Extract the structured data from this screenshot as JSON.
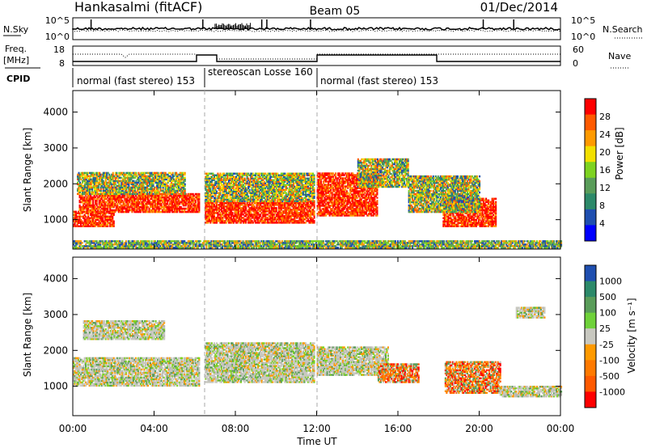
{
  "header": {
    "station": "Hankasalmi (fitACF)",
    "beam": "Beam 05",
    "date": "01/Dec/2014"
  },
  "noise_panel": {
    "left_label": "N.Sky",
    "right_label": "N.Search",
    "tick_top": "10^5",
    "tick_bottom": "10^0",
    "spikes_hours": [
      0.9,
      6.4,
      9.3,
      9.55,
      11.7,
      20.2,
      21.7
    ]
  },
  "freq_panel": {
    "label_line1": "Freq.",
    "label_line2": "[MHz]",
    "left_ticks": [
      "18",
      "8"
    ],
    "right_ticks": [
      "60",
      "0"
    ],
    "right_label": "Nave"
  },
  "cpid_panel": {
    "label": "CPID",
    "modes": [
      {
        "text": "normal (fast stereo) 153",
        "start": 0,
        "end": 6.4
      },
      {
        "text": "stereoscan Losse 160",
        "start": 6.4,
        "end": 12.0
      },
      {
        "text": "normal (fast stereo) 153",
        "start": 12.0,
        "end": 24.0
      }
    ]
  },
  "x_axis": {
    "label": "Time UT",
    "ticks": [
      "00:00",
      "04:00",
      "08:00",
      "12:00",
      "16:00",
      "20:00",
      "00:00"
    ]
  },
  "chart_data": [
    {
      "type": "heatmap",
      "quantity": "Power",
      "ylabel": "Slant Range [km]",
      "xlabel": "Time UT",
      "xlim": [
        0,
        24
      ],
      "ylim": [
        180,
        4600
      ],
      "yticks": [
        "1000",
        "2000",
        "3000",
        "4000"
      ],
      "colorbar": {
        "label": "Power [dB]",
        "ticks": [
          "28",
          "24",
          "20",
          "16",
          "12",
          "8",
          "4"
        ],
        "colors": [
          "#ff0000",
          "#ff5a00",
          "#ff9a00",
          "#f2e000",
          "#7ed321",
          "#5a9d5a",
          "#2d8a6a",
          "#1f4fb0",
          "#0000ff"
        ]
      },
      "regions": [
        {
          "t0": 0.0,
          "t1": 2.0,
          "r0": 800,
          "r1": 1250,
          "level": "high"
        },
        {
          "t0": 0.3,
          "t1": 6.2,
          "r0": 1200,
          "r1": 1700,
          "level": "high"
        },
        {
          "t0": 0.2,
          "t1": 5.5,
          "r0": 1700,
          "r1": 2300,
          "level": "mid"
        },
        {
          "t0": 6.5,
          "t1": 11.9,
          "r0": 900,
          "r1": 1500,
          "level": "high"
        },
        {
          "t0": 6.5,
          "t1": 11.9,
          "r0": 1500,
          "r1": 2300,
          "level": "mid"
        },
        {
          "t0": 12.0,
          "t1": 15.0,
          "r0": 1100,
          "r1": 2300,
          "level": "high"
        },
        {
          "t0": 14.0,
          "t1": 16.5,
          "r0": 1900,
          "r1": 2700,
          "level": "mid"
        },
        {
          "t0": 18.2,
          "t1": 20.8,
          "r0": 800,
          "r1": 1600,
          "level": "high"
        },
        {
          "t0": 16.5,
          "t1": 20.0,
          "r0": 1200,
          "r1": 2200,
          "level": "mid"
        },
        {
          "t0": 0.0,
          "t1": 24.0,
          "r0": 200,
          "r1": 400,
          "level": "low"
        }
      ]
    },
    {
      "type": "heatmap",
      "quantity": "Velocity",
      "ylabel": "Slant Range [km]",
      "xlabel": "Time UT",
      "xlim": [
        0,
        24
      ],
      "ylim": [
        180,
        4600
      ],
      "yticks": [
        "1000",
        "2000",
        "3000",
        "4000"
      ],
      "colorbar": {
        "label": "Velocity [m s⁻¹]",
        "ticks": [
          "1000",
          "500",
          "100",
          "25",
          "-25",
          "-100",
          "-500",
          "-1000"
        ],
        "colors": [
          "#1f4fb0",
          "#2d8a6a",
          "#5a9d5a",
          "#6fd23a",
          "#c8c8c0",
          "#ff9a00",
          "#ff7a00",
          "#ff5a00",
          "#ff0000"
        ]
      },
      "regions": [
        {
          "t0": 0.0,
          "t1": 6.2,
          "r0": 1000,
          "r1": 1800,
          "level": "ground"
        },
        {
          "t0": 0.5,
          "t1": 4.5,
          "r0": 2300,
          "r1": 2800,
          "level": "ground"
        },
        {
          "t0": 6.5,
          "t1": 11.9,
          "r0": 1100,
          "r1": 2200,
          "level": "ground"
        },
        {
          "t0": 12.0,
          "t1": 15.5,
          "r0": 1300,
          "r1": 2100,
          "level": "ground"
        },
        {
          "t0": 15.0,
          "t1": 17.0,
          "r0": 1100,
          "r1": 1600,
          "level": "neg"
        },
        {
          "t0": 18.3,
          "t1": 21.0,
          "r0": 800,
          "r1": 1700,
          "level": "neg"
        },
        {
          "t0": 21.0,
          "t1": 24.0,
          "r0": 700,
          "r1": 1000,
          "level": "ground"
        },
        {
          "t0": 21.8,
          "t1": 23.2,
          "r0": 2900,
          "r1": 3200,
          "level": "ground"
        }
      ]
    }
  ]
}
